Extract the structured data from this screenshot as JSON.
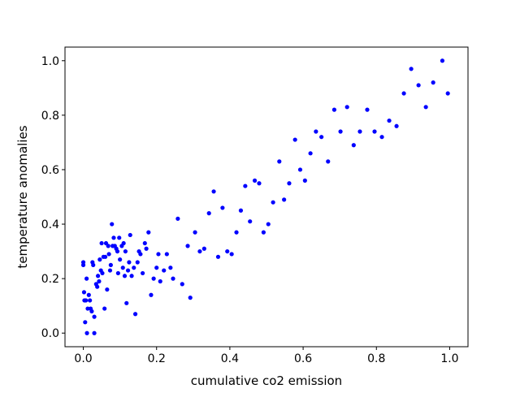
{
  "chart_data": {
    "type": "scatter",
    "title": "",
    "xlabel": "cumulative co2 emission",
    "ylabel": "temperature anomalies",
    "xlim": [
      -0.05,
      1.05
    ],
    "ylim": [
      -0.05,
      1.05
    ],
    "x_ticks": [
      0.0,
      0.2,
      0.4,
      0.6,
      0.8,
      1.0
    ],
    "y_ticks": [
      0.0,
      0.2,
      0.4,
      0.6,
      0.8,
      1.0
    ],
    "x_tick_labels": [
      "0.0",
      "0.2",
      "0.4",
      "0.6",
      "0.8",
      "1.0"
    ],
    "y_tick_labels": [
      "0.0",
      "0.2",
      "0.4",
      "0.6",
      "0.8",
      "1.0"
    ],
    "grid": false,
    "legend": "none",
    "marker_color": "#0000ff",
    "series": [
      {
        "points": [
          [
            0.0,
            0.25
          ],
          [
            0.0,
            0.26
          ],
          [
            0.002,
            0.15
          ],
          [
            0.003,
            0.12
          ],
          [
            0.005,
            0.04
          ],
          [
            0.007,
            0.12
          ],
          [
            0.009,
            0.2
          ],
          [
            0.01,
            0.0
          ],
          [
            0.012,
            0.09
          ],
          [
            0.015,
            0.14
          ],
          [
            0.018,
            0.12
          ],
          [
            0.02,
            0.09
          ],
          [
            0.023,
            0.08
          ],
          [
            0.025,
            0.26
          ],
          [
            0.027,
            0.25
          ],
          [
            0.03,
            0.06
          ],
          [
            0.03,
            0.0
          ],
          [
            0.035,
            0.18
          ],
          [
            0.038,
            0.17
          ],
          [
            0.04,
            0.21
          ],
          [
            0.043,
            0.19
          ],
          [
            0.045,
            0.27
          ],
          [
            0.048,
            0.23
          ],
          [
            0.05,
            0.33
          ],
          [
            0.052,
            0.22
          ],
          [
            0.055,
            0.28
          ],
          [
            0.058,
            0.09
          ],
          [
            0.06,
            0.28
          ],
          [
            0.062,
            0.33
          ],
          [
            0.065,
            0.16
          ],
          [
            0.068,
            0.32
          ],
          [
            0.07,
            0.29
          ],
          [
            0.073,
            0.23
          ],
          [
            0.075,
            0.25
          ],
          [
            0.078,
            0.4
          ],
          [
            0.08,
            0.32
          ],
          [
            0.083,
            0.35
          ],
          [
            0.086,
            0.32
          ],
          [
            0.09,
            0.31
          ],
          [
            0.093,
            0.3
          ],
          [
            0.095,
            0.22
          ],
          [
            0.098,
            0.35
          ],
          [
            0.1,
            0.27
          ],
          [
            0.105,
            0.32
          ],
          [
            0.108,
            0.24
          ],
          [
            0.11,
            0.33
          ],
          [
            0.113,
            0.21
          ],
          [
            0.115,
            0.3
          ],
          [
            0.118,
            0.11
          ],
          [
            0.122,
            0.23
          ],
          [
            0.125,
            0.26
          ],
          [
            0.128,
            0.36
          ],
          [
            0.132,
            0.21
          ],
          [
            0.138,
            0.24
          ],
          [
            0.142,
            0.07
          ],
          [
            0.148,
            0.26
          ],
          [
            0.152,
            0.3
          ],
          [
            0.156,
            0.29
          ],
          [
            0.162,
            0.22
          ],
          [
            0.168,
            0.33
          ],
          [
            0.172,
            0.31
          ],
          [
            0.178,
            0.37
          ],
          [
            0.185,
            0.14
          ],
          [
            0.192,
            0.2
          ],
          [
            0.2,
            0.24
          ],
          [
            0.205,
            0.29
          ],
          [
            0.21,
            0.19
          ],
          [
            0.22,
            0.23
          ],
          [
            0.228,
            0.29
          ],
          [
            0.238,
            0.24
          ],
          [
            0.245,
            0.2
          ],
          [
            0.258,
            0.42
          ],
          [
            0.27,
            0.18
          ],
          [
            0.285,
            0.32
          ],
          [
            0.292,
            0.13
          ],
          [
            0.305,
            0.37
          ],
          [
            0.318,
            0.3
          ],
          [
            0.33,
            0.31
          ],
          [
            0.343,
            0.44
          ],
          [
            0.356,
            0.52
          ],
          [
            0.368,
            0.28
          ],
          [
            0.38,
            0.46
          ],
          [
            0.393,
            0.3
          ],
          [
            0.405,
            0.29
          ],
          [
            0.418,
            0.37
          ],
          [
            0.43,
            0.45
          ],
          [
            0.442,
            0.54
          ],
          [
            0.455,
            0.41
          ],
          [
            0.468,
            0.56
          ],
          [
            0.48,
            0.55
          ],
          [
            0.492,
            0.37
          ],
          [
            0.505,
            0.4
          ],
          [
            0.518,
            0.48
          ],
          [
            0.535,
            0.63
          ],
          [
            0.548,
            0.49
          ],
          [
            0.562,
            0.55
          ],
          [
            0.578,
            0.71
          ],
          [
            0.592,
            0.6
          ],
          [
            0.605,
            0.56
          ],
          [
            0.62,
            0.66
          ],
          [
            0.635,
            0.74
          ],
          [
            0.65,
            0.72
          ],
          [
            0.668,
            0.63
          ],
          [
            0.685,
            0.82
          ],
          [
            0.702,
            0.74
          ],
          [
            0.72,
            0.83
          ],
          [
            0.738,
            0.69
          ],
          [
            0.755,
            0.74
          ],
          [
            0.775,
            0.82
          ],
          [
            0.795,
            0.74
          ],
          [
            0.815,
            0.72
          ],
          [
            0.835,
            0.78
          ],
          [
            0.855,
            0.76
          ],
          [
            0.875,
            0.88
          ],
          [
            0.895,
            0.97
          ],
          [
            0.915,
            0.91
          ],
          [
            0.935,
            0.83
          ],
          [
            0.955,
            0.92
          ],
          [
            0.98,
            1.0
          ],
          [
            0.995,
            0.88
          ]
        ]
      }
    ]
  }
}
